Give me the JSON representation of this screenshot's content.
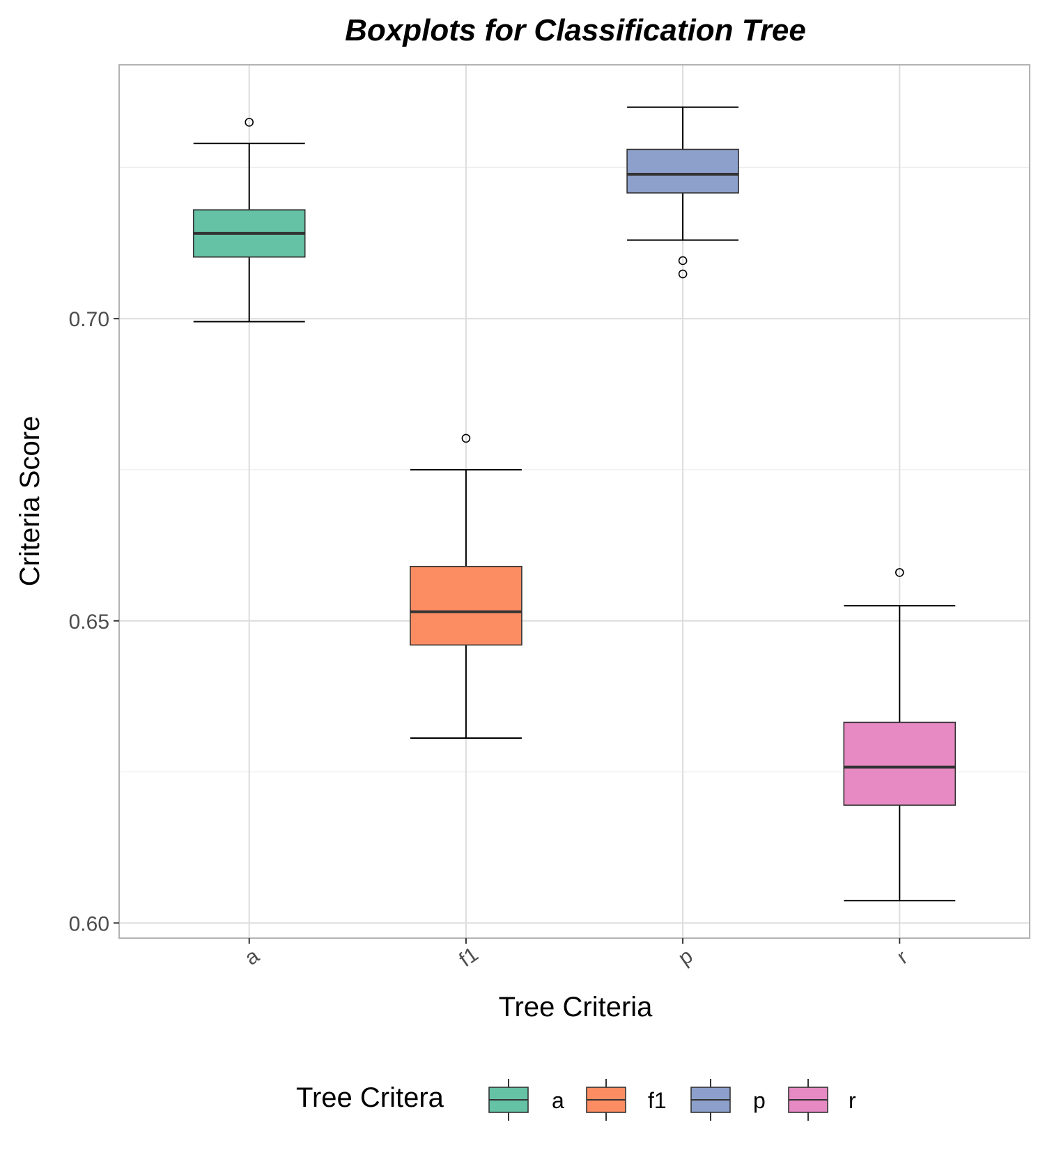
{
  "chart_data": {
    "type": "boxplot",
    "title": "Boxplots for Classification Tree",
    "xlabel": "Tree Criteria",
    "ylabel": "Criteria Score",
    "ylim": [
      0.5975,
      0.742
    ],
    "yticks": [
      0.6,
      0.65,
      0.7
    ],
    "ytick_labels": [
      "0.60",
      "0.65",
      "0.70"
    ],
    "grid": true,
    "legend": {
      "title": "Tree Critera",
      "position": "bottom"
    },
    "categories": [
      "a",
      "f1",
      "p",
      "r"
    ],
    "boxes": [
      {
        "category": "a",
        "color": "#66C2A5",
        "whisker_low": 0.6995,
        "q1": 0.7102,
        "median": 0.7141,
        "q3": 0.718,
        "whisker_high": 0.729,
        "outliers": [
          0.7325
        ]
      },
      {
        "category": "f1",
        "color": "#FC8D62",
        "whisker_low": 0.6306,
        "q1": 0.646,
        "median": 0.6515,
        "q3": 0.659,
        "whisker_high": 0.675,
        "outliers": [
          0.6802
        ]
      },
      {
        "category": "p",
        "color": "#8DA0CB",
        "whisker_low": 0.713,
        "q1": 0.7208,
        "median": 0.7239,
        "q3": 0.728,
        "whisker_high": 0.735,
        "outliers": [
          0.7096,
          0.7074
        ]
      },
      {
        "category": "r",
        "color": "#E78AC3",
        "whisker_low": 0.6037,
        "q1": 0.6195,
        "median": 0.6258,
        "q3": 0.6332,
        "whisker_high": 0.6525,
        "outliers": [
          0.658
        ]
      }
    ]
  }
}
